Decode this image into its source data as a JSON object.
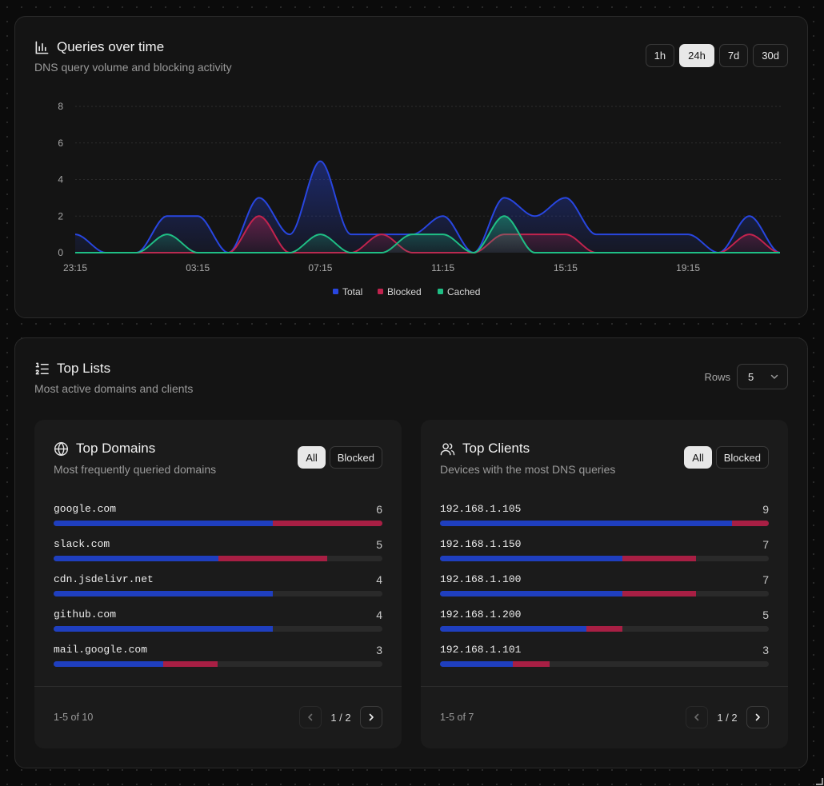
{
  "queries_card": {
    "title": "Queries over time",
    "subtitle": "DNS query volume and blocking activity",
    "ranges": [
      {
        "label": "1h",
        "active": false
      },
      {
        "label": "24h",
        "active": true
      },
      {
        "label": "7d",
        "active": false
      },
      {
        "label": "30d",
        "active": false
      }
    ]
  },
  "chart_data": {
    "type": "area",
    "x": [
      "23:15",
      "00:15",
      "01:15",
      "02:15",
      "03:15",
      "04:15",
      "05:15",
      "06:15",
      "07:15",
      "08:15",
      "09:15",
      "10:15",
      "11:15",
      "12:15",
      "13:15",
      "14:15",
      "15:15",
      "16:15",
      "17:15",
      "18:15",
      "19:15",
      "20:15",
      "21:15",
      "22:15"
    ],
    "x_tick_labels": [
      "23:15",
      "03:15",
      "07:15",
      "11:15",
      "15:15",
      "19:15"
    ],
    "ylim": [
      0,
      8
    ],
    "y_ticks": [
      0,
      2,
      4,
      6,
      8
    ],
    "grid": true,
    "legend_position": "bottom-center",
    "series": [
      {
        "name": "Total",
        "color": "#2846e0",
        "values": [
          1,
          0,
          0,
          2,
          2,
          0,
          3,
          1,
          5,
          1,
          1,
          1,
          2,
          0,
          3,
          2,
          3,
          1,
          1,
          1,
          1,
          0,
          2,
          0
        ]
      },
      {
        "name": "Blocked",
        "color": "#c2234e",
        "values": [
          0,
          0,
          0,
          0,
          0,
          0,
          2,
          0,
          0,
          0,
          1,
          0,
          0,
          0,
          1,
          1,
          1,
          0,
          0,
          0,
          0,
          0,
          1,
          0
        ]
      },
      {
        "name": "Cached",
        "color": "#1fbf85",
        "values": [
          0,
          0,
          0,
          1,
          0,
          0,
          0,
          0,
          1,
          0,
          0,
          1,
          1,
          0,
          2,
          0,
          0,
          0,
          0,
          0,
          0,
          0,
          0,
          0
        ]
      }
    ]
  },
  "lists_card": {
    "title": "Top Lists",
    "subtitle": "Most active domains and clients",
    "rows_label": "Rows",
    "rows_value": "5"
  },
  "domains": {
    "title": "Top Domains",
    "subtitle": "Most frequently queried domains",
    "filter_all": "All",
    "filter_blocked": "Blocked",
    "max": 6,
    "items": [
      {
        "name": "google.com",
        "count": "6",
        "total": 6,
        "blocked": 2
      },
      {
        "name": "slack.com",
        "count": "5",
        "total": 5,
        "blocked": 2
      },
      {
        "name": "cdn.jsdelivr.net",
        "count": "4",
        "total": 4,
        "blocked": 0
      },
      {
        "name": "github.com",
        "count": "4",
        "total": 4,
        "blocked": 0
      },
      {
        "name": "mail.google.com",
        "count": "3",
        "total": 3,
        "blocked": 1
      }
    ],
    "range_text": "1-5 of 10",
    "page_text": "1 / 2"
  },
  "clients": {
    "title": "Top Clients",
    "subtitle": "Devices with the most DNS queries",
    "filter_all": "All",
    "filter_blocked": "Blocked",
    "max": 9,
    "items": [
      {
        "name": "192.168.1.105",
        "count": "9",
        "total": 9,
        "blocked": 1
      },
      {
        "name": "192.168.1.150",
        "count": "7",
        "total": 7,
        "blocked": 2
      },
      {
        "name": "192.168.1.100",
        "count": "7",
        "total": 7,
        "blocked": 2
      },
      {
        "name": "192.168.1.200",
        "count": "5",
        "total": 5,
        "blocked": 1
      },
      {
        "name": "192.168.1.101",
        "count": "3",
        "total": 3,
        "blocked": 1
      }
    ],
    "range_text": "1-5 of 7",
    "page_text": "1 / 2"
  }
}
